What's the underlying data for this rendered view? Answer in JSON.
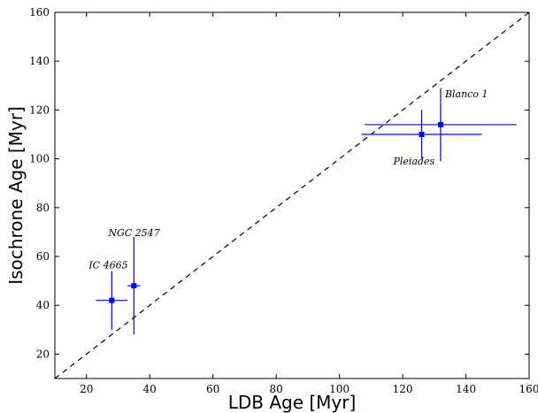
{
  "chart_data": {
    "type": "scatter",
    "xlabel": "LDB Age [Myr]",
    "ylabel": "Isochrone Age [Myr]",
    "xlim": [
      10,
      160
    ],
    "ylim": [
      10,
      160
    ],
    "x_ticks": [
      20,
      40,
      60,
      80,
      100,
      120,
      140,
      160
    ],
    "y_ticks": [
      20,
      40,
      60,
      80,
      100,
      120,
      140,
      160
    ],
    "grid": false,
    "legend": "none",
    "reference_line": {
      "style": "dashed",
      "relation": "y = x"
    },
    "point_color": "#0000ff",
    "points": [
      {
        "label": "IC 4665",
        "x": 28,
        "y": 42,
        "x_err": 5,
        "y_err": 12
      },
      {
        "label": "NGC 2547",
        "x": 35,
        "y": 48,
        "x_err": 2,
        "y_err": 20
      },
      {
        "label": "Pleiades",
        "x": 126,
        "y": 110,
        "x_err": 19,
        "y_err": 10
      },
      {
        "label": "Blanco 1",
        "x": 132,
        "y": 114,
        "x_err": 24,
        "y_err": 15
      }
    ]
  }
}
